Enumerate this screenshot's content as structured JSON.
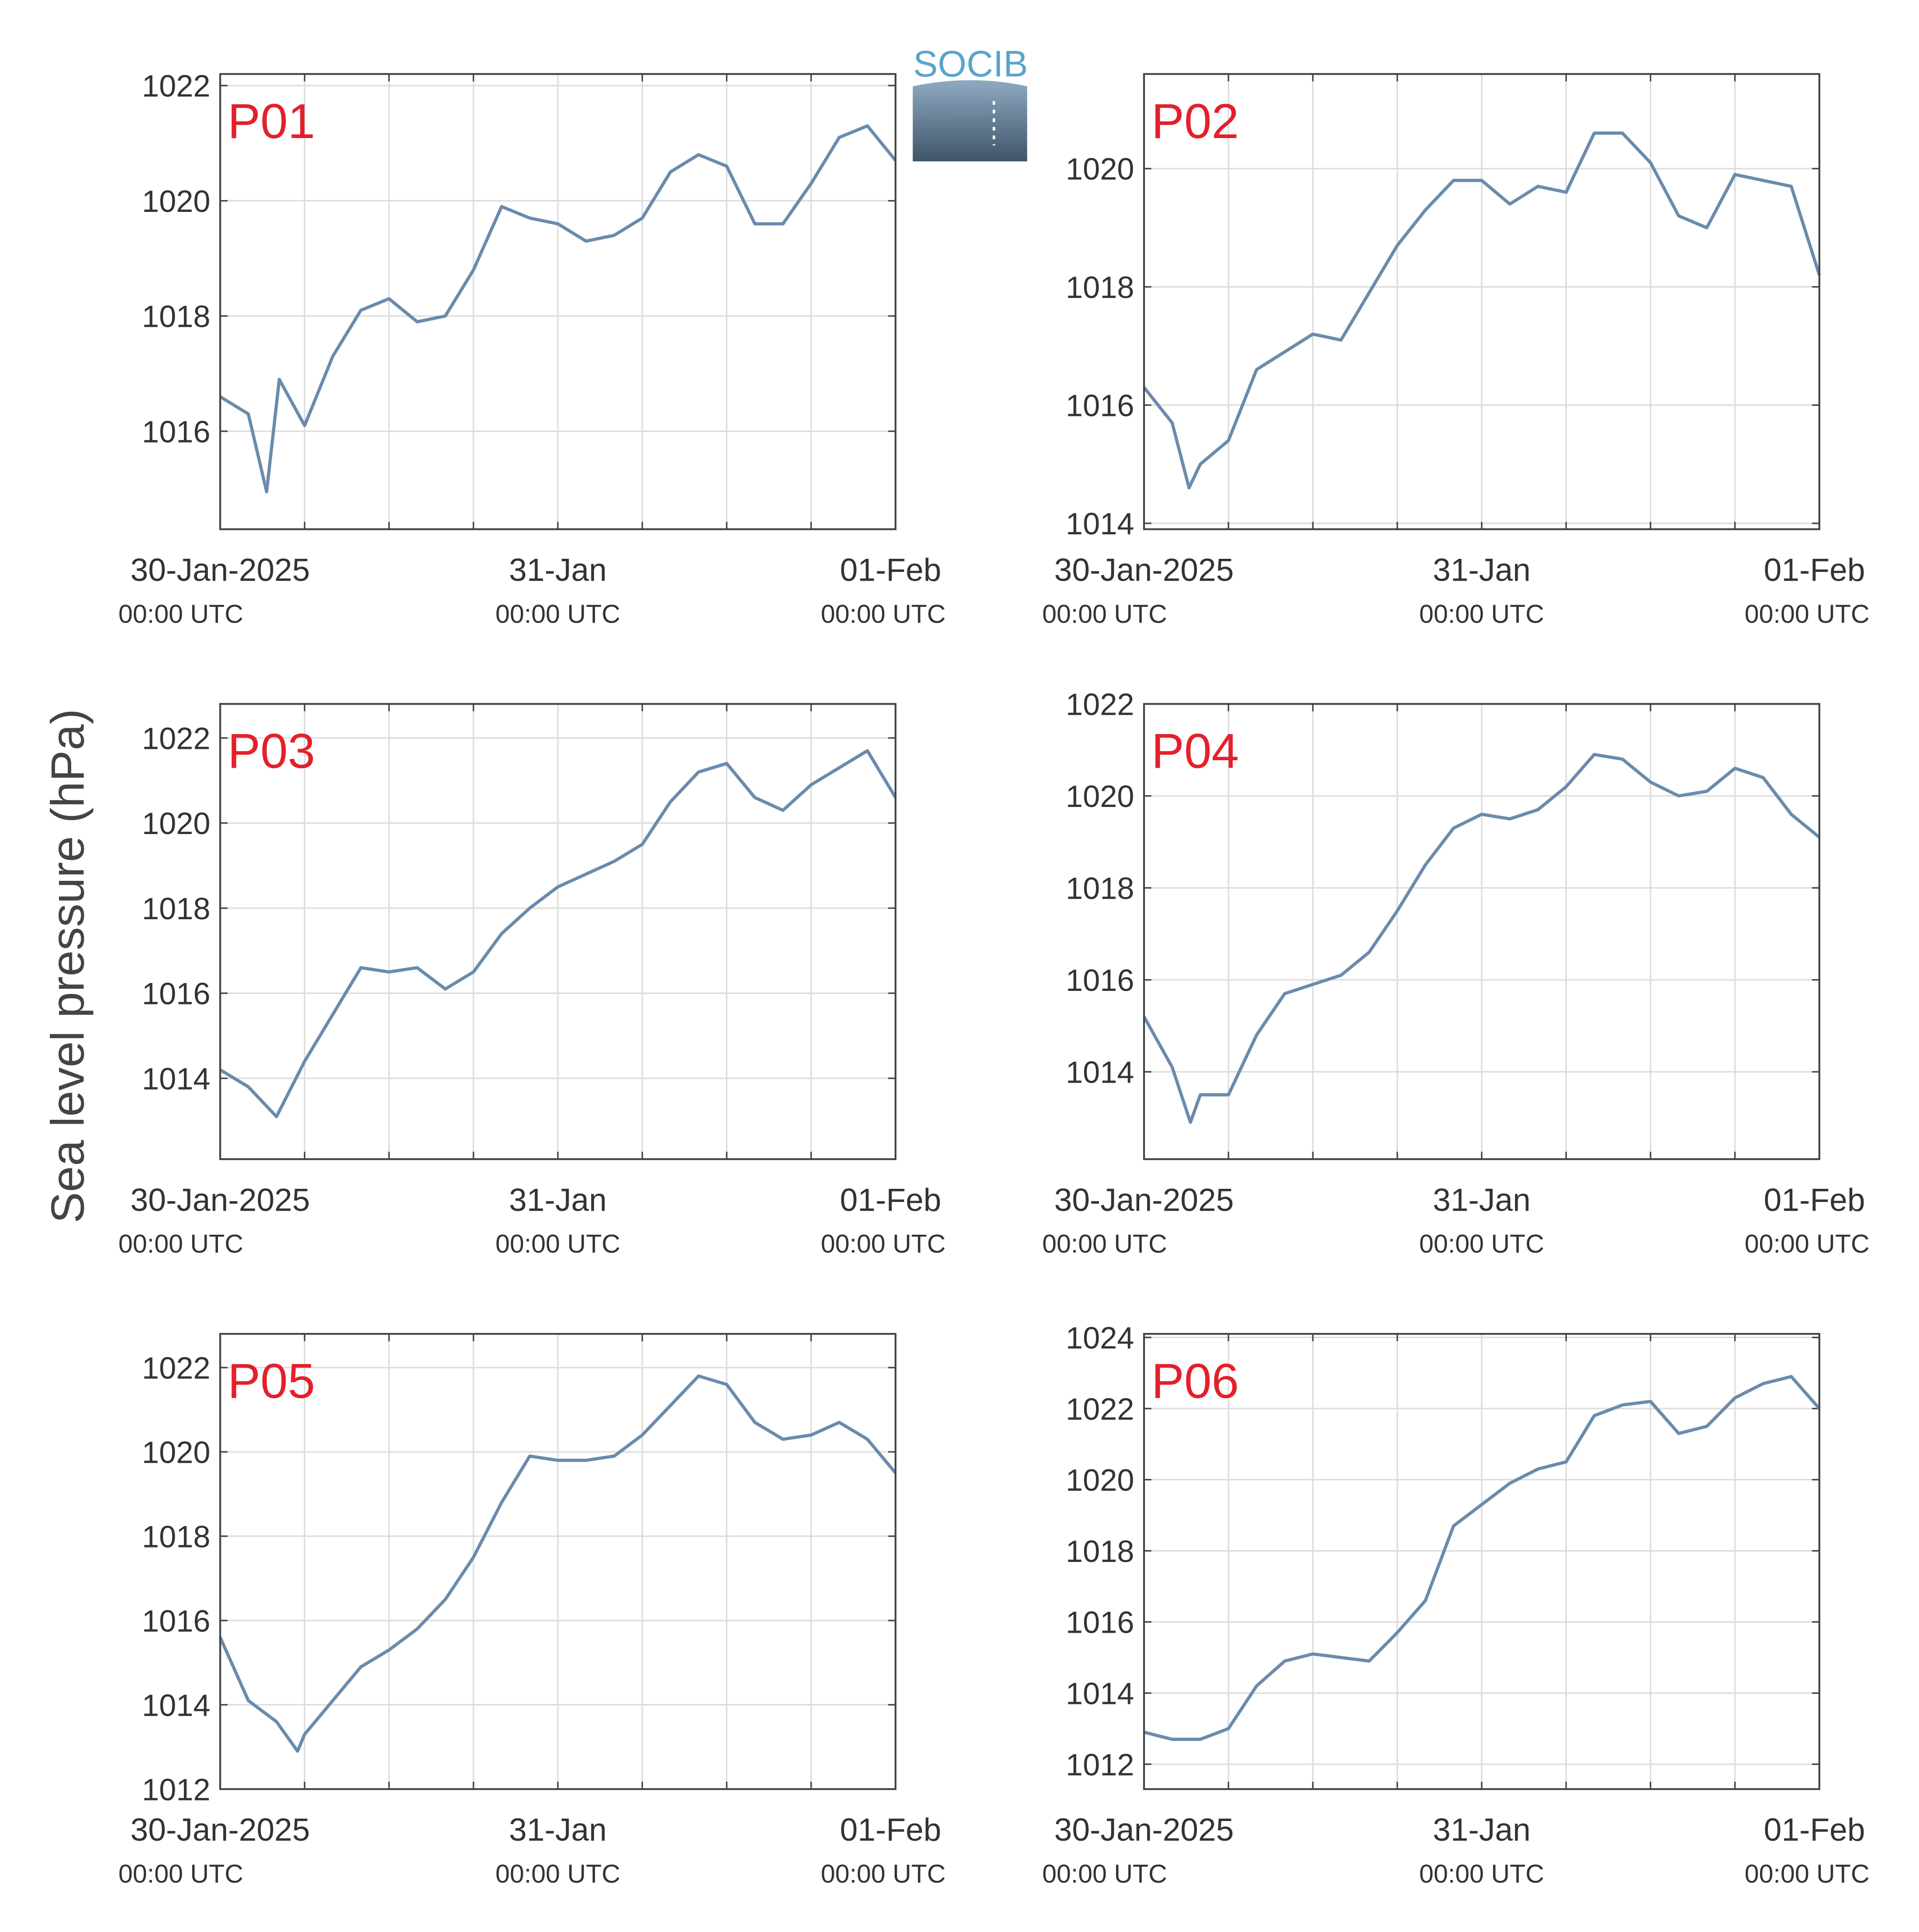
{
  "figure": {
    "ylabel": "Sea level pressure (hPa)",
    "logo": "SOCIB"
  },
  "chart_data": [
    {
      "type": "line",
      "title": "P01",
      "color": "#6a8bac",
      "grid": true,
      "x": [
        0,
        2,
        3.3,
        4.2,
        6,
        8,
        10,
        12,
        14,
        16,
        18,
        20,
        22,
        24,
        26,
        28,
        30,
        32,
        34,
        36,
        38,
        40,
        42,
        44,
        46,
        48
      ],
      "values": [
        1016.6,
        1016.3,
        1014.95,
        1016.9,
        1016.1,
        1017.3,
        1018.1,
        1018.3,
        1017.9,
        1018.0,
        1018.8,
        1019.9,
        1019.7,
        1019.6,
        1019.3,
        1019.4,
        1019.7,
        1020.5,
        1020.8,
        1020.6,
        1019.6,
        1019.6,
        1020.3,
        1021.1,
        1021.3,
        1020.7
      ],
      "xlim": [
        0,
        48
      ],
      "ylim": [
        1014.3,
        1022.2
      ],
      "yticks": [
        1016,
        1018,
        1020,
        1022
      ],
      "xticks": [
        {
          "value": 0,
          "label": "30-Jan-2025",
          "sublabel": "00:00 UTC"
        },
        {
          "value": 24,
          "label": "31-Jan",
          "sublabel": "00:00 UTC"
        },
        {
          "value": 48,
          "label": "01-Feb",
          "sublabel": "00:00 UTC"
        }
      ],
      "xminor": [
        6,
        12,
        18,
        30,
        36,
        42
      ]
    },
    {
      "type": "line",
      "title": "P02",
      "color": "#6a8bac",
      "grid": true,
      "x": [
        0,
        2,
        3.2,
        4,
        6,
        8,
        10,
        12,
        14,
        16,
        18,
        20,
        22,
        24,
        26,
        28,
        30,
        32,
        34,
        36,
        38,
        40,
        42,
        44,
        46,
        48
      ],
      "values": [
        1016.3,
        1015.7,
        1014.6,
        1015.0,
        1015.4,
        1016.6,
        1016.9,
        1017.2,
        1017.1,
        1017.9,
        1018.7,
        1019.3,
        1019.8,
        1019.8,
        1019.4,
        1019.7,
        1019.6,
        1020.6,
        1020.6,
        1020.1,
        1019.2,
        1019.0,
        1019.9,
        1019.8,
        1019.7,
        1018.2
      ],
      "xlim": [
        0,
        48
      ],
      "ylim": [
        1013.9,
        1021.6
      ],
      "yticks": [
        1014,
        1016,
        1018,
        1020
      ],
      "xticks": [
        {
          "value": 0,
          "label": "30-Jan-2025",
          "sublabel": "00:00 UTC"
        },
        {
          "value": 24,
          "label": "31-Jan",
          "sublabel": "00:00 UTC"
        },
        {
          "value": 48,
          "label": "01-Feb",
          "sublabel": "00:00 UTC"
        }
      ],
      "xminor": [
        6,
        12,
        18,
        30,
        36,
        42
      ]
    },
    {
      "type": "line",
      "title": "P03",
      "color": "#6a8bac",
      "grid": true,
      "x": [
        0,
        2,
        4,
        6,
        8,
        10,
        12,
        14,
        16,
        18,
        20,
        22,
        24,
        26,
        28,
        30,
        32,
        34,
        36,
        38,
        40,
        42,
        44,
        46,
        48
      ],
      "values": [
        1014.2,
        1013.8,
        1013.1,
        1014.4,
        1015.5,
        1016.6,
        1016.5,
        1016.6,
        1016.1,
        1016.5,
        1017.4,
        1018.0,
        1018.5,
        1018.8,
        1019.1,
        1019.5,
        1020.5,
        1021.2,
        1021.4,
        1020.6,
        1020.3,
        1020.9,
        1021.3,
        1021.7,
        1020.6
      ],
      "xlim": [
        0,
        48
      ],
      "ylim": [
        1012.1,
        1022.8
      ],
      "yticks": [
        1014,
        1016,
        1018,
        1020,
        1022
      ],
      "xticks": [
        {
          "value": 0,
          "label": "30-Jan-2025",
          "sublabel": "00:00 UTC"
        },
        {
          "value": 24,
          "label": "31-Jan",
          "sublabel": "00:00 UTC"
        },
        {
          "value": 48,
          "label": "01-Feb",
          "sublabel": "00:00 UTC"
        }
      ],
      "xminor": [
        6,
        12,
        18,
        30,
        36,
        42
      ]
    },
    {
      "type": "line",
      "title": "P04",
      "color": "#6a8bac",
      "grid": true,
      "x": [
        0,
        2,
        3.3,
        4,
        6,
        8,
        10,
        12,
        14,
        16,
        18,
        20,
        22,
        24,
        26,
        28,
        30,
        32,
        34,
        36,
        38,
        40,
        42,
        44,
        46,
        48
      ],
      "values": [
        1015.2,
        1014.1,
        1012.9,
        1013.5,
        1013.5,
        1014.8,
        1015.7,
        1015.9,
        1016.1,
        1016.6,
        1017.5,
        1018.5,
        1019.3,
        1019.6,
        1019.5,
        1019.7,
        1020.2,
        1020.9,
        1020.8,
        1020.3,
        1020.0,
        1020.1,
        1020.6,
        1020.4,
        1019.6,
        1019.1
      ],
      "xlim": [
        0,
        48
      ],
      "ylim": [
        1012.1,
        1022
      ],
      "yticks": [
        1014,
        1016,
        1018,
        1020,
        1022
      ],
      "xticks": [
        {
          "value": 0,
          "label": "30-Jan-2025",
          "sublabel": "00:00 UTC"
        },
        {
          "value": 24,
          "label": "31-Jan",
          "sublabel": "00:00 UTC"
        },
        {
          "value": 48,
          "label": "01-Feb",
          "sublabel": "00:00 UTC"
        }
      ],
      "xminor": [
        6,
        12,
        18,
        30,
        36,
        42
      ]
    },
    {
      "type": "line",
      "title": "P05",
      "color": "#6a8bac",
      "grid": true,
      "x": [
        0,
        2,
        4,
        5.5,
        6,
        8,
        10,
        12,
        14,
        16,
        18,
        20,
        22,
        24,
        26,
        28,
        30,
        32,
        34,
        36,
        38,
        40,
        42,
        44,
        46,
        48
      ],
      "values": [
        1015.6,
        1014.1,
        1013.6,
        1012.9,
        1013.3,
        1014.1,
        1014.9,
        1015.3,
        1015.8,
        1016.5,
        1017.5,
        1018.8,
        1019.9,
        1019.8,
        1019.8,
        1019.9,
        1020.4,
        1021.1,
        1021.8,
        1021.6,
        1020.7,
        1020.3,
        1020.4,
        1020.7,
        1020.3,
        1019.5
      ],
      "xlim": [
        0,
        48
      ],
      "ylim": [
        1012,
        1022.8
      ],
      "yticks": [
        1012,
        1014,
        1016,
        1018,
        1020,
        1022
      ],
      "xticks": [
        {
          "value": 0,
          "label": "30-Jan-2025",
          "sublabel": "00:00 UTC"
        },
        {
          "value": 24,
          "label": "31-Jan",
          "sublabel": "00:00 UTC"
        },
        {
          "value": 48,
          "label": "01-Feb",
          "sublabel": "00:00 UTC"
        }
      ],
      "xminor": [
        6,
        12,
        18,
        30,
        36,
        42
      ]
    },
    {
      "type": "line",
      "title": "P06",
      "color": "#6a8bac",
      "grid": true,
      "x": [
        0,
        2,
        4,
        6,
        8,
        10,
        12,
        14,
        16,
        18,
        20,
        22,
        24,
        26,
        28,
        30,
        32,
        34,
        36,
        38,
        40,
        42,
        44,
        46,
        48
      ],
      "values": [
        1012.9,
        1012.7,
        1012.7,
        1013.0,
        1014.2,
        1014.9,
        1015.1,
        1015.0,
        1014.9,
        1015.7,
        1016.6,
        1018.7,
        1019.3,
        1019.9,
        1020.3,
        1020.5,
        1021.8,
        1022.1,
        1022.2,
        1021.3,
        1021.5,
        1022.3,
        1022.7,
        1022.9,
        1022.0
      ],
      "xlim": [
        0,
        48
      ],
      "ylim": [
        1011.3,
        1024.1
      ],
      "yticks": [
        1012,
        1014,
        1016,
        1018,
        1020,
        1022,
        1024
      ],
      "xticks": [
        {
          "value": 0,
          "label": "30-Jan-2025",
          "sublabel": "00:00 UTC"
        },
        {
          "value": 24,
          "label": "31-Jan",
          "sublabel": "00:00 UTC"
        },
        {
          "value": 48,
          "label": "01-Feb",
          "sublabel": "00:00 UTC"
        }
      ],
      "xminor": [
        6,
        12,
        18,
        30,
        36,
        42
      ]
    }
  ]
}
